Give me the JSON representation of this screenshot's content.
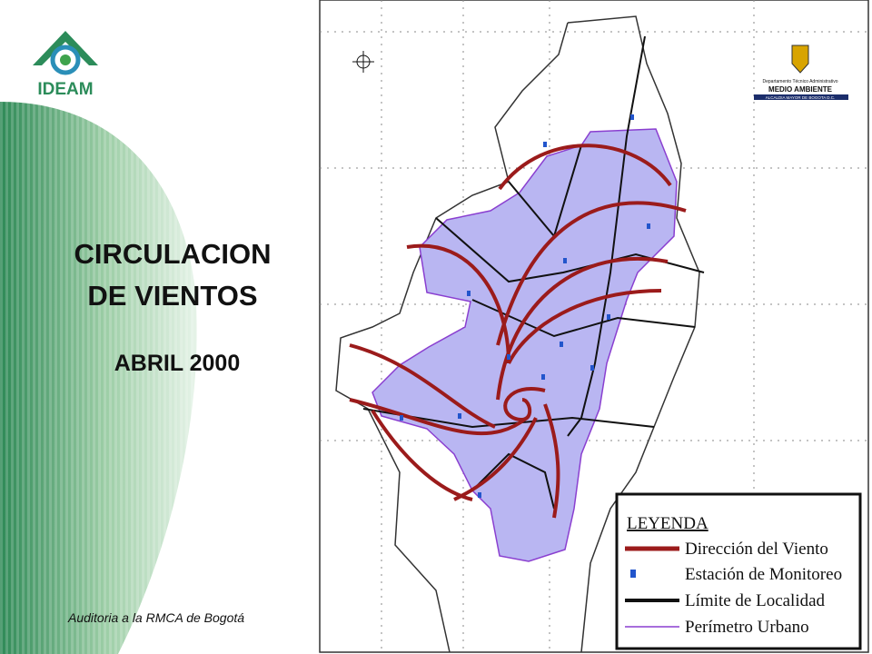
{
  "logo": {
    "name": "IDEAM"
  },
  "title": {
    "lines": [
      "CIRCULACION",
      "DE VIENTOS"
    ],
    "date": "ABRIL 2000"
  },
  "footer": "Auditoria a la RMCA de Bogotá",
  "map": {
    "emblem": {
      "department": "Departamento Técnico Administrativo",
      "name": "MEDIO AMBIENTE",
      "office": "ALCALDIA MAYOR DE BOGOTA D.C."
    },
    "legend": {
      "title": "LEYENDA",
      "items": [
        "Dirección del Viento",
        "Estación de Monitoreo",
        "Límite de Localidad",
        "Perímetro Urbano"
      ]
    }
  }
}
